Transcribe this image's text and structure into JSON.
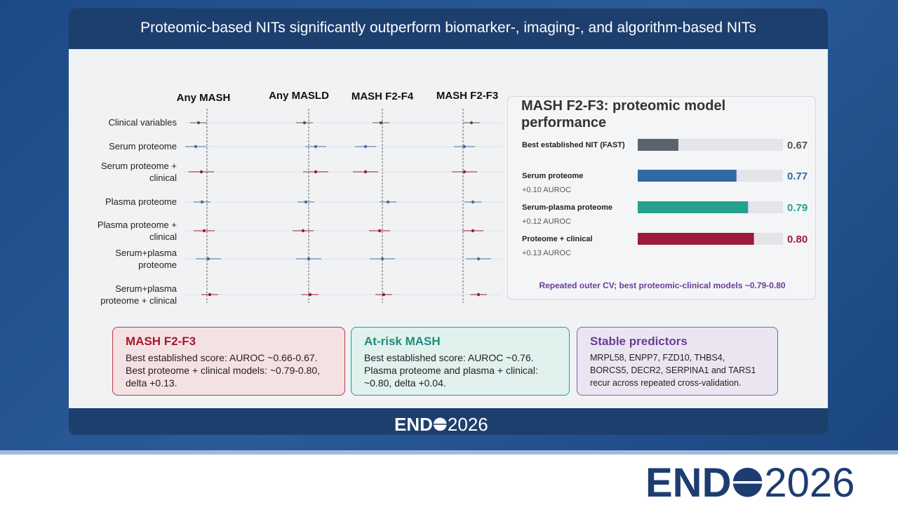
{
  "slide": {
    "title": "Proteomic-based NITs significantly outperform biomarker-, imaging-, and algorithm-based NITs",
    "forest": {
      "columns": [
        "Any MASH",
        "Any MASLD",
        "MASH F2-F4",
        "MASH F2-F3"
      ],
      "rows": [
        "Clinical variables",
        "Serum proteome",
        "Serum proteome + clinical",
        "Plasma proteome",
        "Plasma proteome + clinical",
        "Serum+plasma proteome",
        "Serum+plasma proteome + clinical"
      ]
    },
    "model_panel": {
      "title": "MASH F2-F3: proteomic model performance",
      "xlim": [
        0.6,
        0.85
      ],
      "bars": [
        {
          "label": "Best established NIT (FAST)",
          "value": 0.67,
          "value_label": "0.67",
          "color": "#5b636d"
        },
        {
          "label": "Serum proteome",
          "delta": "+0.10 AUROC",
          "value": 0.77,
          "value_label": "0.77",
          "color": "#2f6aa3"
        },
        {
          "label": "Serum-plasma proteome",
          "delta": "+0.12 AUROC",
          "value": 0.79,
          "value_label": "0.79",
          "color": "#26a08e"
        },
        {
          "label": "Proteome + clinical",
          "delta": "+0.13 AUROC",
          "value": 0.8,
          "value_label": "0.80",
          "color": "#9b1b3a"
        }
      ],
      "footnote": "Repeated outer CV; best proteomic-clinical models ~0.79-0.80"
    },
    "cards": [
      {
        "title": "MASH F2-F3",
        "body": "Best established score: AUROC ~0.66-0.67. Best proteome + clinical models: ~0.79-0.80, delta +0.13."
      },
      {
        "title": "At-risk MASH",
        "body": "Best established score: AUROC ~0.76. Plasma proteome and plasma + clinical: ~0.80, delta +0.04."
      },
      {
        "title": "Stable predictors",
        "body": "MRPL58, ENPP7, FZD10, THBS4, BORCS5, DECR2, SERPINA1 and TARS1 recur across repeated cross-validation."
      }
    ],
    "logo": {
      "left": "END",
      "right": "2026"
    }
  }
}
